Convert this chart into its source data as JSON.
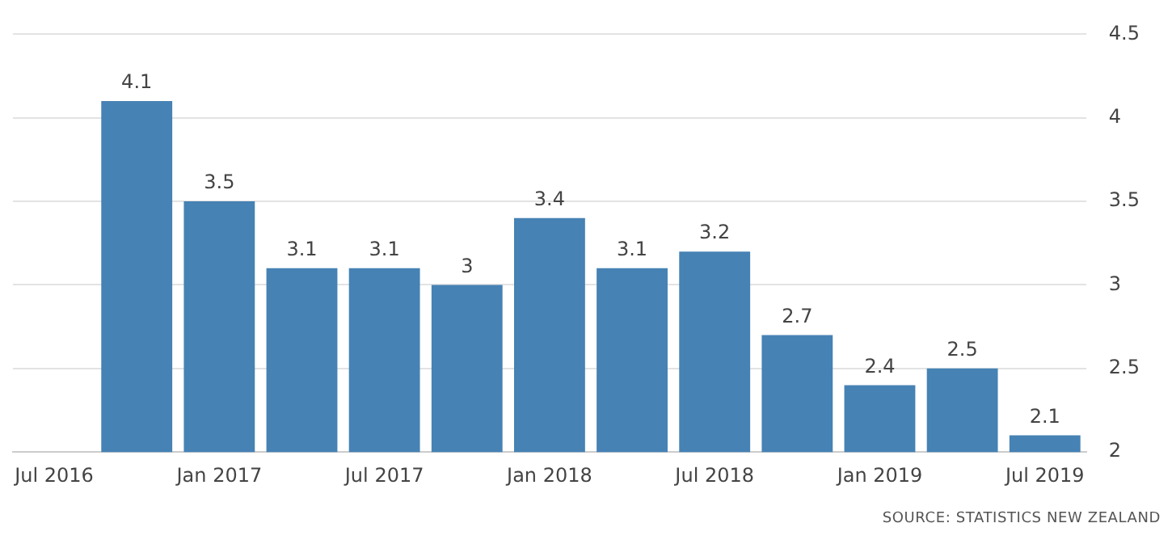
{
  "chart_data": {
    "type": "bar",
    "categories": [
      "Jul 2016",
      null,
      "Jan 2017",
      null,
      "Jul 2017",
      null,
      "Jan 2018",
      null,
      "Jul 2018",
      null,
      "Jan 2019",
      null,
      "Jul 2019"
    ],
    "values": [
      null,
      4.1,
      3.5,
      3.1,
      3.1,
      3,
      3.4,
      3.1,
      3.2,
      2.7,
      2.4,
      2.5,
      2.1
    ],
    "color": "#4682b4",
    "ylim": [
      2,
      4.5
    ],
    "yticks": [
      2,
      2.5,
      3,
      3.5,
      4,
      4.5
    ],
    "grid": "y",
    "data_labels": true,
    "annotations": [
      "SOURCE: STATISTICS NEW ZEALAND"
    ]
  }
}
